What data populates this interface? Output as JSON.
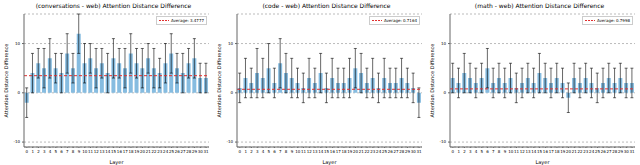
{
  "chart_data": [
    {
      "type": "bar",
      "title": "(conversations - web) Attention Distance Difference",
      "x_label": "Layer",
      "y_label": "Attention Distance Difference",
      "categories": [
        "0",
        "1",
        "2",
        "3",
        "4",
        "5",
        "6",
        "7",
        "8",
        "9",
        "10",
        "11",
        "12",
        "13",
        "14",
        "15",
        "16",
        "17",
        "18",
        "19",
        "20",
        "21",
        "22",
        "23",
        "24",
        "25",
        "26",
        "27",
        "28",
        "29",
        "30",
        "31"
      ],
      "values": [
        -2,
        4,
        6,
        5,
        7,
        5,
        4,
        8,
        5,
        12,
        6,
        7,
        5,
        6,
        4,
        7,
        6,
        5,
        8,
        6,
        5,
        7,
        5,
        4,
        6,
        8,
        5,
        4,
        6,
        7,
        3,
        3
      ],
      "errors": [
        3,
        4,
        3,
        4,
        4,
        3,
        4,
        4,
        3,
        4,
        4,
        3,
        4,
        3,
        4,
        4,
        3,
        4,
        4,
        3,
        4,
        3,
        4,
        3,
        4,
        4,
        3,
        4,
        3,
        4,
        3,
        3
      ],
      "color": "#86bce0",
      "ylim": [
        -11,
        16
      ],
      "yticks": [
        -10,
        0,
        10
      ],
      "grid": true,
      "legend": "upper right",
      "average": {
        "value": 3.4777,
        "label": "Average: 3.4777",
        "color": "#e03030"
      }
    },
    {
      "type": "bar",
      "title": "(code - web) Attention Distance Difference",
      "x_label": "Layer",
      "y_label": "Attention Distance Difference",
      "categories": [
        "0",
        "1",
        "2",
        "3",
        "4",
        "5",
        "6",
        "7",
        "8",
        "9",
        "10",
        "11",
        "12",
        "13",
        "14",
        "15",
        "16",
        "17",
        "18",
        "19",
        "20",
        "21",
        "22",
        "23",
        "24",
        "25",
        "26",
        "27",
        "28",
        "29",
        "30",
        "31"
      ],
      "values": [
        1,
        3,
        2,
        4,
        3,
        5,
        2,
        6,
        4,
        3,
        2,
        1,
        3,
        2,
        4,
        1,
        3,
        2,
        2,
        3,
        5,
        4,
        2,
        3,
        1,
        3,
        2,
        2,
        3,
        2,
        1,
        -2
      ],
      "errors": [
        3,
        4,
        3,
        5,
        4,
        5,
        3,
        5,
        4,
        4,
        3,
        3,
        4,
        3,
        4,
        3,
        4,
        3,
        3,
        4,
        4,
        4,
        3,
        4,
        3,
        4,
        3,
        3,
        4,
        3,
        3,
        3
      ],
      "color": "#86bce0",
      "ylim": [
        -11,
        16
      ],
      "yticks": [
        -10,
        0,
        10
      ],
      "grid": true,
      "legend": "upper right",
      "average": {
        "value": 0.7164,
        "label": "Average: 0.7164",
        "color": "#e03030"
      }
    },
    {
      "type": "bar",
      "title": "(math - web) Attention Distance Difference",
      "x_label": "Layer",
      "y_label": "Attention Distance Difference",
      "categories": [
        "0",
        "1",
        "2",
        "3",
        "4",
        "5",
        "6",
        "7",
        "8",
        "9",
        "10",
        "11",
        "12",
        "13",
        "14",
        "15",
        "16",
        "17",
        "18",
        "19",
        "20",
        "21",
        "22",
        "23",
        "24",
        "25",
        "26",
        "27",
        "28",
        "29",
        "30",
        "31"
      ],
      "values": [
        3,
        2,
        4,
        3,
        2,
        3,
        5,
        2,
        3,
        2,
        3,
        1,
        2,
        3,
        2,
        4,
        3,
        2,
        3,
        2,
        -1,
        3,
        2,
        3,
        2,
        1,
        2,
        3,
        2,
        3,
        2,
        2
      ],
      "errors": [
        3,
        3,
        4,
        3,
        3,
        3,
        4,
        3,
        3,
        3,
        3,
        3,
        3,
        3,
        3,
        4,
        3,
        3,
        3,
        3,
        3,
        3,
        3,
        3,
        3,
        3,
        3,
        3,
        3,
        3,
        3,
        3
      ],
      "color": "#86bce0",
      "ylim": [
        -11,
        16
      ],
      "yticks": [
        -10,
        0,
        10
      ],
      "grid": true,
      "legend": "upper right",
      "average": {
        "value": 0.7998,
        "label": "Average: 0.7998",
        "color": "#e03030"
      }
    }
  ]
}
